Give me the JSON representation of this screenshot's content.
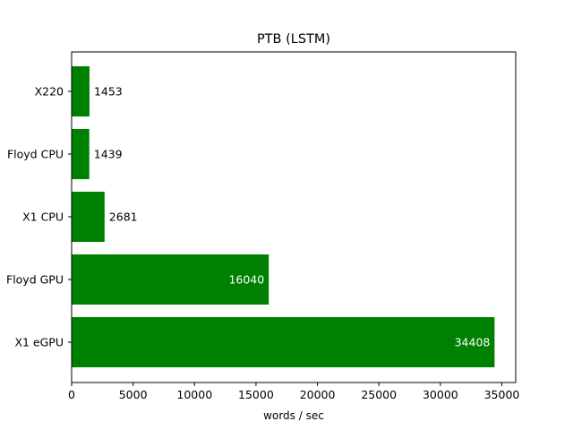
{
  "chart_data": {
    "type": "bar",
    "orientation": "horizontal",
    "title": "PTB (LSTM)",
    "xlabel": "words / sec",
    "ylabel": "",
    "categories": [
      "X220",
      "Floyd CPU",
      "X1 CPU",
      "Floyd GPU",
      "X1 eGPU"
    ],
    "values": [
      1453,
      1439,
      2681,
      16040,
      34408
    ],
    "value_labels": [
      "1453",
      "1439",
      "2681",
      "16040",
      "34408"
    ],
    "xlim": [
      0,
      36129
    ],
    "xticks": [
      0,
      5000,
      10000,
      15000,
      20000,
      25000,
      30000,
      35000
    ],
    "xtick_labels": [
      "0",
      "5000",
      "10000",
      "15000",
      "20000",
      "25000",
      "30000",
      "35000"
    ],
    "bar_color": "#008000",
    "grid": false,
    "legend": "none"
  }
}
